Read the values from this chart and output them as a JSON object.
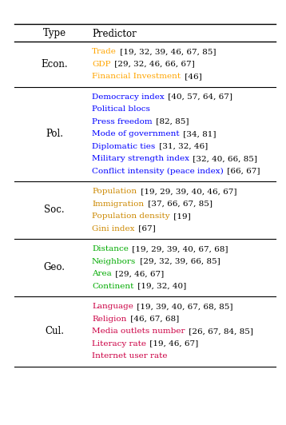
{
  "header": [
    "Type",
    "Predictor"
  ],
  "sections": [
    {
      "type_label": "Econ.",
      "rows": [
        {
          "text": "Trade",
          "color": "#FFA500",
          "suffix": " [19, 32, 39, 46, 67, 85]"
        },
        {
          "text": "GDP",
          "color": "#FFA500",
          "suffix": " [29, 32, 46, 66, 67]"
        },
        {
          "text": "Financial Investment",
          "color": "#FFA500",
          "suffix": " [46]"
        }
      ]
    },
    {
      "type_label": "Pol.",
      "rows": [
        {
          "text": "Democracy index",
          "color": "#0000FF",
          "suffix": " [40, 57, 64, 67]"
        },
        {
          "text": "Political blocs",
          "color": "#0000FF",
          "suffix": ""
        },
        {
          "text": "Press freedom",
          "color": "#0000FF",
          "suffix": " [82, 85]"
        },
        {
          "text": "Mode of government",
          "color": "#0000FF",
          "suffix": " [34, 81]"
        },
        {
          "text": "Diplomatic ties",
          "color": "#0000FF",
          "suffix": " [31, 32, 46]"
        },
        {
          "text": "Military strength index",
          "color": "#0000FF",
          "suffix": " [32, 40, 66, 85]"
        },
        {
          "text": "Conflict intensity (peace index)",
          "color": "#0000FF",
          "suffix": " [66, 67]"
        }
      ]
    },
    {
      "type_label": "Soc.",
      "rows": [
        {
          "text": "Population",
          "color": "#CC8800",
          "suffix": " [19, 29, 39, 40, 46, 67]"
        },
        {
          "text": "Immigration",
          "color": "#CC8800",
          "suffix": " [37, 66, 67, 85]"
        },
        {
          "text": "Population density",
          "color": "#CC8800",
          "suffix": " [19]"
        },
        {
          "text": "Gini index",
          "color": "#CC8800",
          "suffix": " [67]"
        }
      ]
    },
    {
      "type_label": "Geo.",
      "rows": [
        {
          "text": "Distance",
          "color": "#00AA00",
          "suffix": " [19, 29, 39, 40, 67, 68]"
        },
        {
          "text": "Neighbors",
          "color": "#00AA00",
          "suffix": " [29, 32, 39, 66, 85]"
        },
        {
          "text": "Area",
          "color": "#00AA00",
          "suffix": " [29, 46, 67]"
        },
        {
          "text": "Continent",
          "color": "#00AA00",
          "suffix": " [19, 32, 40]"
        }
      ]
    },
    {
      "type_label": "Cul.",
      "rows": [
        {
          "text": "Language",
          "color": "#CC0044",
          "suffix": " [19, 39, 40, 67, 68, 85]"
        },
        {
          "text": "Religion",
          "color": "#CC0044",
          "suffix": " [46, 67, 68]"
        },
        {
          "text": "Media outlets number",
          "color": "#CC0044",
          "suffix": " [26, 67, 84, 85]"
        },
        {
          "text": "Literacy rate",
          "color": "#CC0044",
          "suffix": " [19, 46, 67]"
        },
        {
          "text": "Internet user rate",
          "color": "#CC0044",
          "suffix": ""
        }
      ]
    }
  ],
  "suffix_color": "#000000",
  "type_color": "#000000",
  "header_color": "#000000",
  "background": "#ffffff",
  "figsize": [
    3.58,
    5.32
  ],
  "dpi": 100,
  "row_fontsize": 7.5,
  "header_fontsize": 8.5,
  "type_fontsize": 8.5
}
